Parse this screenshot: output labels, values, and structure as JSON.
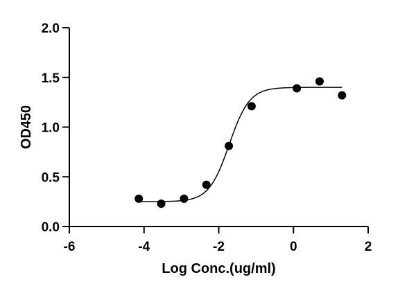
{
  "chart_data": {
    "type": "scatter",
    "xlabel": "Log Conc.(ug/ml)",
    "ylabel": "OD450",
    "xlim": [
      -6,
      2
    ],
    "ylim": [
      0,
      2
    ],
    "x_ticks": [
      -6,
      -4,
      -2,
      0,
      2
    ],
    "y_ticks": [
      0.0,
      0.5,
      1.0,
      1.5,
      2.0
    ],
    "x_tick_labels": [
      "-6",
      "-4",
      "-2",
      "0",
      "2"
    ],
    "y_tick_labels": [
      "0.0",
      "0.5",
      "1.0",
      "1.5",
      "2.0"
    ],
    "grid": false,
    "points": {
      "x": [
        -4.14,
        -3.54,
        -2.93,
        -2.33,
        -1.73,
        -1.12,
        0.09,
        0.7,
        1.3
      ],
      "y": [
        0.28,
        0.23,
        0.28,
        0.42,
        0.81,
        1.21,
        1.39,
        1.46,
        1.32
      ]
    },
    "fit_curve": {
      "model": "4-parameter logistic",
      "bottom": 0.25,
      "top": 1.4,
      "log_ec50": -1.72,
      "hill": 1.6
    },
    "colors": {
      "points": "#000000",
      "curve": "#000000",
      "axes": "#000000"
    }
  }
}
